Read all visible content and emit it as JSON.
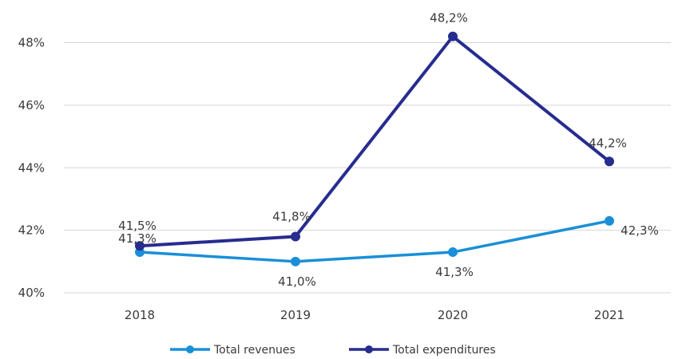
{
  "chart_data": {
    "type": "line",
    "categories": [
      "2018",
      "2019",
      "2020",
      "2021"
    ],
    "y_ticks": [
      "40%",
      "42%",
      "44%",
      "46%",
      "48%"
    ],
    "ylim": [
      40,
      48.6
    ],
    "grid": true,
    "legend_position": "bottom",
    "series": [
      {
        "name": "Total revenues",
        "color": "#1a8fd8",
        "values": [
          41.3,
          41.0,
          41.3,
          42.3
        ],
        "labels": [
          "41,3%",
          "41,0%",
          "41,3%",
          "42,3%"
        ]
      },
      {
        "name": "Total expenditures",
        "color": "#272c8f",
        "values": [
          41.5,
          41.8,
          48.2,
          44.2
        ],
        "labels": [
          "41,5%",
          "41,8%",
          "48,2%",
          "44,2%"
        ]
      }
    ]
  }
}
